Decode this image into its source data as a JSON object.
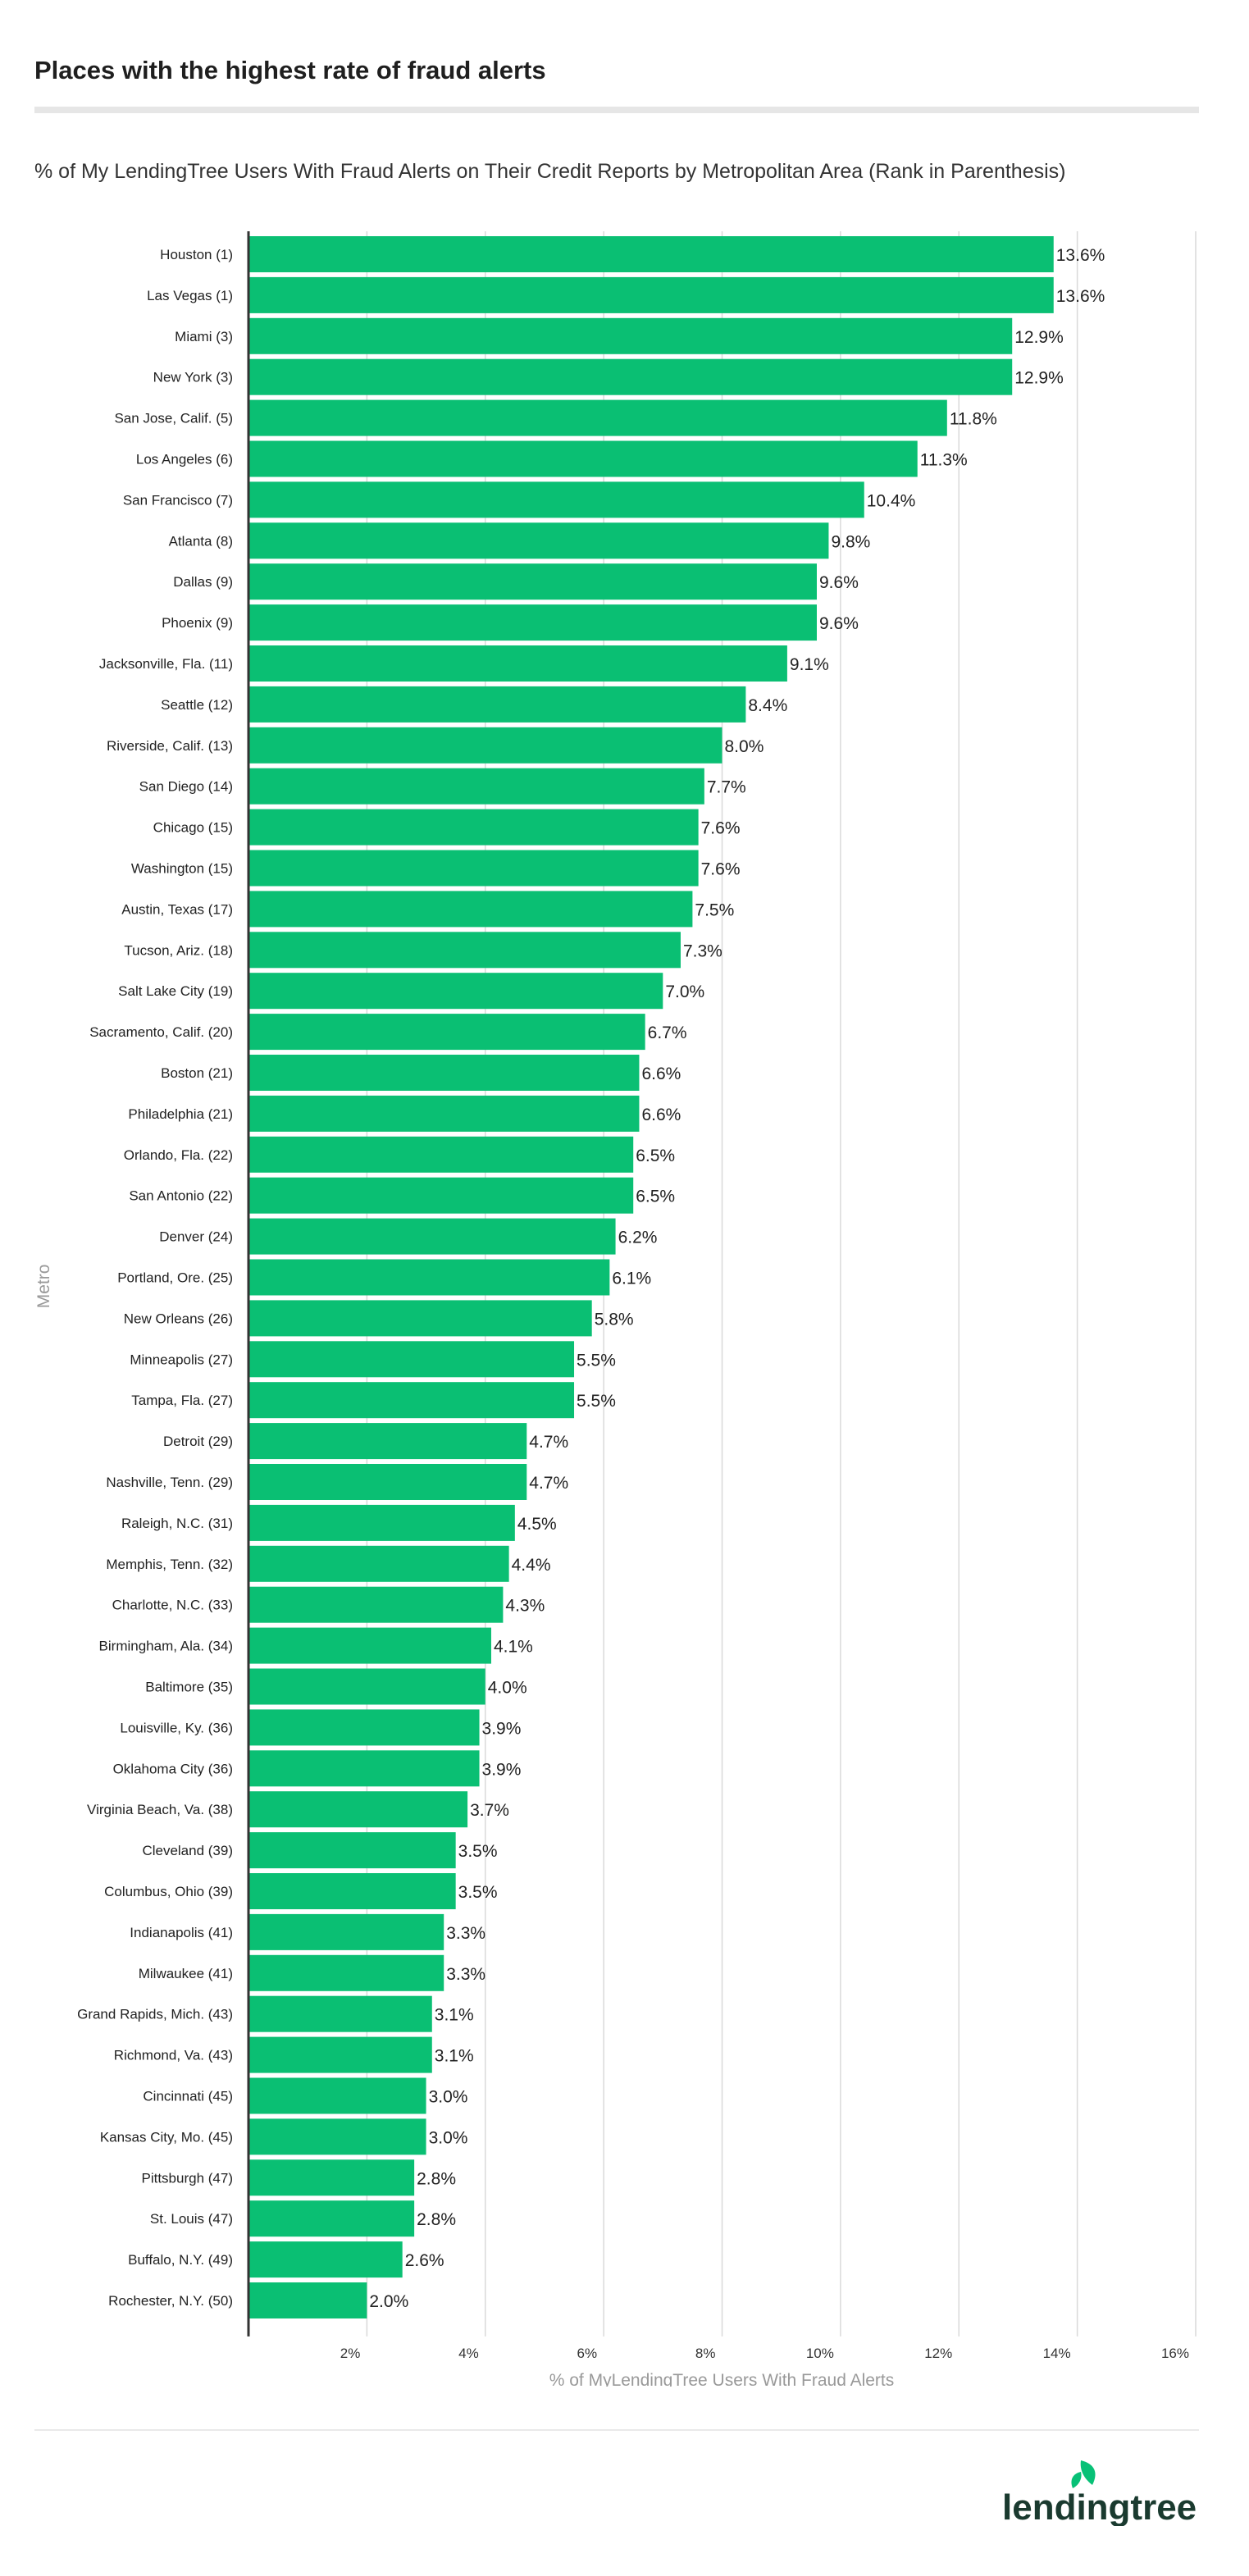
{
  "header": {
    "title": "Places with the highest rate of fraud alerts",
    "subtitle": "% of My LendingTree Users With Fraud Alerts on Their Credit Reports by Metropolitan Area (Rank in Parenthesis)"
  },
  "brand": {
    "logo_text": "lendingtree",
    "logo_color": "#1a3a2f",
    "leaf_color": "#08c177"
  },
  "colors": {
    "bar": "#0abf73",
    "grid": "#d9d9d9",
    "axis": "#333333"
  },
  "chart_data": {
    "type": "bar",
    "orientation": "horizontal",
    "title": "Places with the highest rate of fraud alerts",
    "subtitle": "% of My LendingTree Users With Fraud Alerts on Their Credit Reports by Metropolitan Area (Rank in Parenthesis)",
    "xlabel": "% of MyLendingTree Users With Fraud Alerts",
    "ylabel": "Metro",
    "xlim": [
      0,
      16
    ],
    "xticks": [
      2,
      4,
      6,
      8,
      10,
      12,
      14,
      16
    ],
    "xtick_labels": [
      "2%",
      "4%",
      "6%",
      "8%",
      "10%",
      "12%",
      "14%",
      "16%"
    ],
    "grid": true,
    "categories": [
      "Houston (1)",
      "Las Vegas (1)",
      "Miami (3)",
      "New York (3)",
      "San Jose, Calif. (5)",
      "Los Angeles (6)",
      "San Francisco (7)",
      "Atlanta (8)",
      "Dallas (9)",
      "Phoenix (9)",
      "Jacksonville, Fla. (11)",
      "Seattle (12)",
      "Riverside, Calif. (13)",
      "San Diego (14)",
      "Chicago (15)",
      "Washington (15)",
      "Austin, Texas (17)",
      "Tucson, Ariz. (18)",
      "Salt Lake City (19)",
      "Sacramento, Calif. (20)",
      "Boston (21)",
      "Philadelphia (21)",
      "Orlando, Fla. (22)",
      "San Antonio (22)",
      "Denver (24)",
      "Portland, Ore. (25)",
      "New Orleans (26)",
      "Minneapolis (27)",
      "Tampa, Fla. (27)",
      "Detroit (29)",
      "Nashville, Tenn. (29)",
      "Raleigh, N.C. (31)",
      "Memphis, Tenn. (32)",
      "Charlotte, N.C. (33)",
      "Birmingham, Ala. (34)",
      "Baltimore (35)",
      "Louisville, Ky. (36)",
      "Oklahoma City (36)",
      "Virginia Beach, Va. (38)",
      "Cleveland (39)",
      "Columbus, Ohio (39)",
      "Indianapolis (41)",
      "Milwaukee (41)",
      "Grand Rapids, Mich. (43)",
      "Richmond, Va. (43)",
      "Cincinnati (45)",
      "Kansas City, Mo. (45)",
      "Pittsburgh (47)",
      "St. Louis (47)",
      "Buffalo, N.Y. (49)",
      "Rochester, N.Y. (50)"
    ],
    "values": [
      13.6,
      13.6,
      12.9,
      12.9,
      11.8,
      11.3,
      10.4,
      9.8,
      9.6,
      9.6,
      9.1,
      8.4,
      8.0,
      7.7,
      7.6,
      7.6,
      7.5,
      7.3,
      7.0,
      6.7,
      6.6,
      6.6,
      6.5,
      6.5,
      6.2,
      6.1,
      5.8,
      5.5,
      5.5,
      4.7,
      4.7,
      4.5,
      4.4,
      4.3,
      4.1,
      4.0,
      3.9,
      3.9,
      3.7,
      3.5,
      3.5,
      3.3,
      3.3,
      3.1,
      3.1,
      3.0,
      3.0,
      2.8,
      2.8,
      2.6,
      2.0
    ],
    "data_labels": [
      "13.6%",
      "13.6%",
      "12.9%",
      "12.9%",
      "11.8%",
      "11.3%",
      "10.4%",
      "9.8%",
      "9.6%",
      "9.6%",
      "9.1%",
      "8.4%",
      "8.0%",
      "7.7%",
      "7.6%",
      "7.6%",
      "7.5%",
      "7.3%",
      "7.0%",
      "6.7%",
      "6.6%",
      "6.6%",
      "6.5%",
      "6.5%",
      "6.2%",
      "6.1%",
      "5.8%",
      "5.5%",
      "5.5%",
      "4.7%",
      "4.7%",
      "4.5%",
      "4.4%",
      "4.3%",
      "4.1%",
      "4.0%",
      "3.9%",
      "3.9%",
      "3.7%",
      "3.5%",
      "3.5%",
      "3.3%",
      "3.3%",
      "3.1%",
      "3.1%",
      "3.0%",
      "3.0%",
      "2.8%",
      "2.8%",
      "2.6%",
      "2.0%"
    ]
  }
}
